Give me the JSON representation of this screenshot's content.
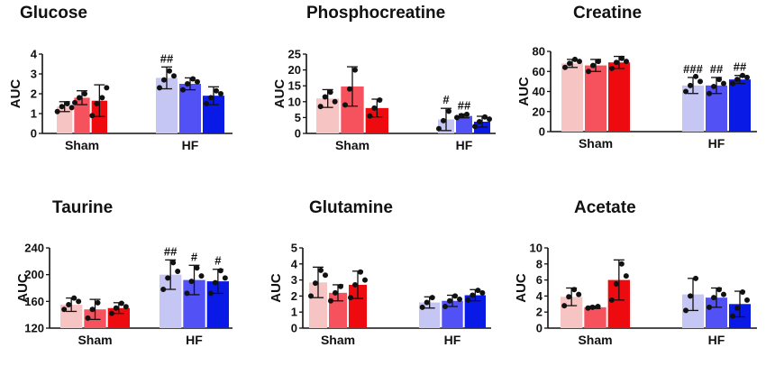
{
  "colors": {
    "sham": [
      "#f7c4c4",
      "#f5525e",
      "#ee0b10"
    ],
    "hf": [
      "#c6c6f5",
      "#5151f5",
      "#0a1ae6"
    ],
    "axis": "#111111",
    "point": "#111111"
  },
  "chart_data": [
    {
      "type": "bar",
      "title": "Glucose",
      "ylabel": "AUC",
      "ylim": [
        0,
        4
      ],
      "yticks": [
        0,
        1,
        2,
        3,
        4
      ],
      "categories": [
        "Sham",
        "HF"
      ],
      "groups": [
        {
          "category": "Sham",
          "bars": [
            {
              "value": 1.35,
              "err": 0.25,
              "sig": "",
              "points": [
                1.1,
                1.35,
                1.5,
                1.3
              ]
            },
            {
              "value": 1.8,
              "err": 0.35,
              "sig": "",
              "points": [
                1.55,
                1.8,
                2.0
              ]
            },
            {
              "value": 1.65,
              "err": 0.8,
              "sig": "",
              "points": [
                0.9,
                1.5,
                1.8,
                2.3
              ]
            }
          ]
        },
        {
          "category": "HF",
          "bars": [
            {
              "value": 2.8,
              "err": 0.55,
              "sig": "##",
              "points": [
                2.3,
                2.7,
                3.15,
                2.9
              ]
            },
            {
              "value": 2.5,
              "err": 0.3,
              "sig": "",
              "points": [
                2.2,
                2.5,
                2.75,
                2.6
              ]
            },
            {
              "value": 1.9,
              "err": 0.45,
              "sig": "",
              "points": [
                1.5,
                1.8,
                2.15,
                2.0
              ]
            }
          ]
        }
      ]
    },
    {
      "type": "bar",
      "title": "Phosphocreatine",
      "ylabel": "AUC",
      "ylim": [
        0,
        25
      ],
      "yticks": [
        0,
        5,
        10,
        15,
        20,
        25
      ],
      "categories": [
        "Sham",
        "HF"
      ],
      "groups": [
        {
          "category": "Sham",
          "bars": [
            {
              "value": 11,
              "err": 2.8,
              "sig": "",
              "points": [
                8.5,
                11.5,
                13.0,
                10.0
              ]
            },
            {
              "value": 14.8,
              "err": 6.2,
              "sig": "",
              "points": [
                9.0,
                14.0,
                20.0
              ]
            },
            {
              "value": 8,
              "err": 2.8,
              "sig": "",
              "points": [
                5.5,
                8.0,
                10.5
              ]
            }
          ]
        },
        {
          "category": "HF",
          "bars": [
            {
              "value": 4.4,
              "err": 3.5,
              "sig": "#",
              "points": [
                1.5,
                4.0,
                7.0
              ]
            },
            {
              "value": 5.5,
              "err": 0.6,
              "sig": "##",
              "points": [
                5.0,
                5.6,
                6.0
              ]
            },
            {
              "value": 3.7,
              "err": 1.7,
              "sig": "",
              "points": [
                2.2,
                3.7,
                5.2,
                4.5
              ]
            }
          ]
        }
      ]
    },
    {
      "type": "bar",
      "title": "Creatine",
      "ylabel": "AUC",
      "ylim": [
        0,
        80
      ],
      "yticks": [
        0,
        20,
        40,
        60,
        80
      ],
      "categories": [
        "Sham",
        "HF"
      ],
      "groups": [
        {
          "category": "Sham",
          "bars": [
            {
              "value": 68,
              "err": 4,
              "sig": "",
              "points": [
                64,
                68,
                72,
                70
              ]
            },
            {
              "value": 66,
              "err": 6,
              "sig": "",
              "points": [
                60,
                66,
                70
              ]
            },
            {
              "value": 69,
              "err": 6,
              "sig": "",
              "points": [
                63,
                69,
                73,
                70
              ]
            }
          ]
        },
        {
          "category": "HF",
          "bars": [
            {
              "value": 46,
              "err": 8,
              "sig": "###",
              "points": [
                40,
                46,
                55,
                50
              ]
            },
            {
              "value": 46,
              "err": 8,
              "sig": "##",
              "points": [
                38,
                45,
                52,
                48
              ]
            },
            {
              "value": 52,
              "err": 4,
              "sig": "##",
              "points": [
                48,
                52,
                56,
                54
              ]
            }
          ]
        }
      ]
    },
    {
      "type": "bar",
      "title": "Taurine",
      "ylabel": "AUC",
      "ylim": [
        120,
        240
      ],
      "yticks": [
        120,
        160,
        200,
        240
      ],
      "categories": [
        "Sham",
        "HF"
      ],
      "groups": [
        {
          "category": "Sham",
          "bars": [
            {
              "value": 155,
              "err": 10,
              "sig": "",
              "points": [
                148,
                155,
                165,
                160
              ]
            },
            {
              "value": 148,
              "err": 15,
              "sig": "",
              "points": [
                135,
                148,
                158
              ]
            },
            {
              "value": 150,
              "err": 8,
              "sig": "",
              "points": [
                142,
                150,
                157,
                152
              ]
            }
          ]
        },
        {
          "category": "HF",
          "bars": [
            {
              "value": 200,
              "err": 22,
              "sig": "##",
              "points": [
                178,
                195,
                218,
                205
              ]
            },
            {
              "value": 192,
              "err": 22,
              "sig": "#",
              "points": [
                172,
                190,
                210,
                198
              ]
            },
            {
              "value": 190,
              "err": 18,
              "sig": "#",
              "points": [
                172,
                188,
                206,
                195
              ]
            }
          ]
        }
      ]
    },
    {
      "type": "bar",
      "title": "Glutamine",
      "ylabel": "AUC",
      "ylim": [
        0,
        5
      ],
      "yticks": [
        0,
        1,
        2,
        3,
        4,
        5
      ],
      "categories": [
        "Sham",
        "HF"
      ],
      "groups": [
        {
          "category": "Sham",
          "bars": [
            {
              "value": 2.85,
              "err": 0.95,
              "sig": "",
              "points": [
                2.0,
                2.8,
                3.6,
                3.3
              ]
            },
            {
              "value": 2.2,
              "err": 0.5,
              "sig": "",
              "points": [
                1.7,
                2.2,
                2.6
              ]
            },
            {
              "value": 2.7,
              "err": 0.85,
              "sig": "",
              "points": [
                1.9,
                2.7,
                3.5,
                3.0
              ]
            }
          ]
        },
        {
          "category": "HF",
          "bars": [
            {
              "value": 1.6,
              "err": 0.35,
              "sig": "",
              "points": [
                1.3,
                1.6,
                1.9
              ]
            },
            {
              "value": 1.7,
              "err": 0.35,
              "sig": "",
              "points": [
                1.35,
                1.7,
                2.0,
                1.8
              ]
            },
            {
              "value": 2.05,
              "err": 0.35,
              "sig": "",
              "points": [
                1.75,
                2.05,
                2.35,
                2.2
              ]
            }
          ]
        }
      ]
    },
    {
      "type": "bar",
      "title": "Acetate",
      "ylabel": "AUC",
      "ylim": [
        0,
        10
      ],
      "yticks": [
        0,
        2,
        4,
        6,
        8,
        10
      ],
      "categories": [
        "Sham",
        "HF"
      ],
      "groups": [
        {
          "category": "Sham",
          "bars": [
            {
              "value": 3.9,
              "err": 1.1,
              "sig": "",
              "points": [
                2.8,
                3.9,
                4.8,
                4.2
              ]
            },
            {
              "value": 2.6,
              "err": 0.15,
              "sig": "",
              "points": [
                2.5,
                2.6,
                2.7
              ]
            },
            {
              "value": 6.0,
              "err": 2.5,
              "sig": "",
              "points": [
                3.5,
                5.5,
                8.0,
                6.5
              ]
            }
          ]
        },
        {
          "category": "HF",
          "bars": [
            {
              "value": 4.2,
              "err": 2.0,
              "sig": "",
              "points": [
                2.2,
                4.0,
                6.2
              ]
            },
            {
              "value": 3.8,
              "err": 1.2,
              "sig": "",
              "points": [
                2.6,
                3.8,
                4.8,
                4.2
              ]
            },
            {
              "value": 3.0,
              "err": 1.6,
              "sig": "",
              "points": [
                1.5,
                2.5,
                4.5,
                3.5
              ]
            }
          ]
        }
      ]
    }
  ]
}
